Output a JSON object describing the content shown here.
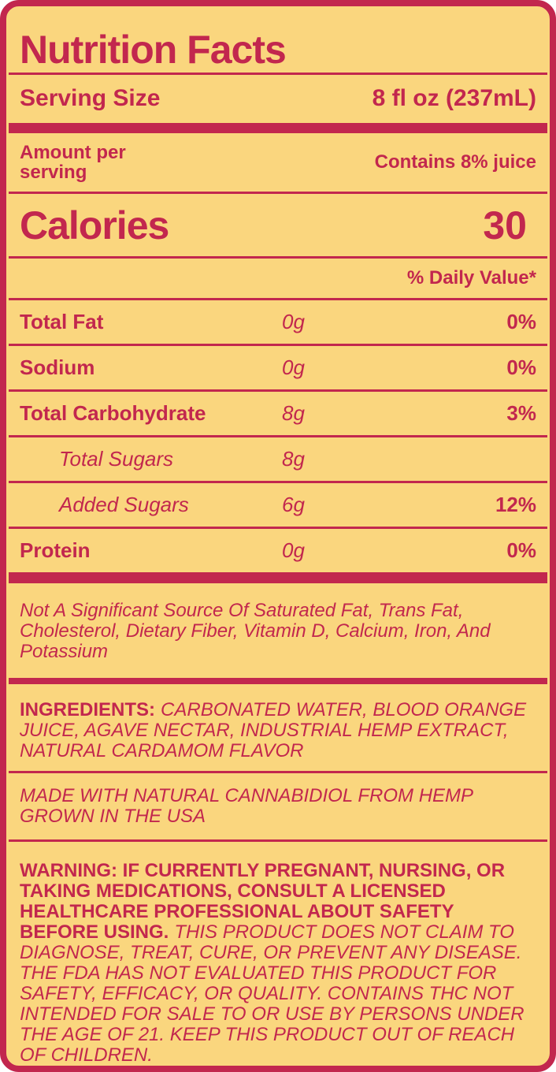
{
  "colors": {
    "background": "#FAD67E",
    "accent": "#C2274E"
  },
  "header": {
    "title": "Nutrition Facts"
  },
  "serving": {
    "label": "Serving Size",
    "value": "8 fl oz (237mL)"
  },
  "amount_per": {
    "line1": "Amount per",
    "line2": "serving",
    "contains": "Contains 8% juice"
  },
  "calories": {
    "label": "Calories",
    "value": "30"
  },
  "daily_value_header": "% Daily Value*",
  "nutrients": [
    {
      "name": "Total Fat",
      "amount": "0g",
      "dv": "0%"
    },
    {
      "name": "Sodium",
      "amount": "0g",
      "dv": "0%"
    },
    {
      "name": "Total Carbohydrate",
      "amount": "8g",
      "dv": "3%"
    },
    {
      "name": "Total Sugars",
      "amount": "8g",
      "dv": ""
    },
    {
      "name": "Added Sugars",
      "amount": "6g",
      "dv": "12%"
    },
    {
      "name": "Protein",
      "amount": "0g",
      "dv": "0%"
    }
  ],
  "footnotes": {
    "not_significant": "Not A Significant Source Of Saturated Fat, Trans Fat, Cholesterol, Dietary Fiber, Vitamin D, Calcium, Iron, And Potassium",
    "ingredients_label": "INGREDIENTS:",
    "ingredients": "CARBONATED WATER, BLOOD ORANGE JUICE, AGAVE NECTAR, INDUSTRIAL HEMP EXTRACT, NATURAL CARDAMOM FLAVOR",
    "made_with": "MADE WITH NATURAL CANNABIDIOL FROM HEMP GROWN IN THE USA",
    "warning_bold": "WARNING: IF CURRENTLY PREGNANT, NURSING, OR TAKING MEDICATIONS, CONSULT A LICENSED HEALTHCARE PROFESSIONAL ABOUT SAFETY BEFORE USING.",
    "warning_italic": "THIS PRODUCT DOES NOT CLAIM TO DIAGNOSE, TREAT, CURE, OR PREVENT ANY DISEASE. THE FDA HAS NOT EVALUATED THIS PRODUCT FOR SAFETY, EFFICACY, OR QUALITY. CONTAINS THC NOT INTENDED FOR SALE TO OR USE BY PERSONS UNDER THE AGE OF 21. KEEP THIS PRODUCT OUT OF REACH OF CHILDREN."
  }
}
